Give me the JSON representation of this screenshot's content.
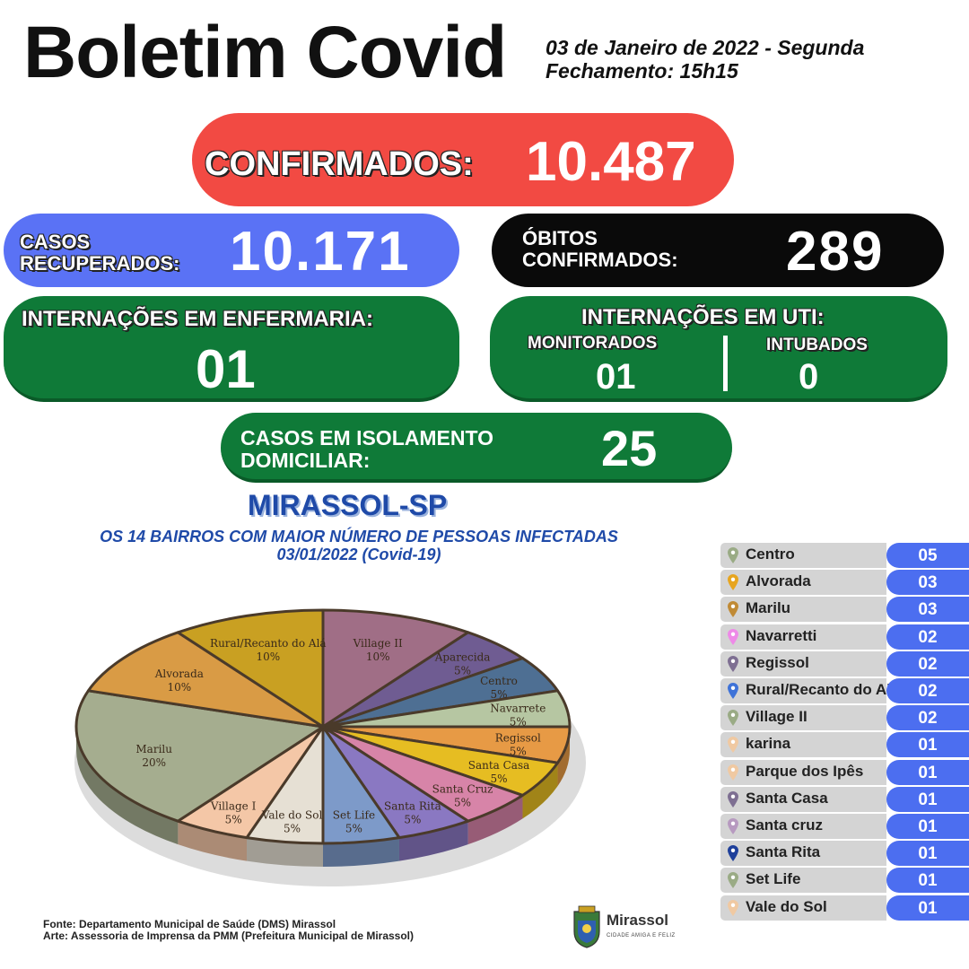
{
  "header": {
    "title": "Boletim Covid",
    "date": "03 de Janeiro de 2022 - Segunda",
    "closing": "Fechamento: 15h15"
  },
  "confirmed": {
    "label": "CONFIRMADOS:",
    "value": "10.487",
    "color": "#f24a43"
  },
  "recovered": {
    "label_line1": "CASOS",
    "label_line2": "RECUPERADOS:",
    "value": "10.171",
    "color": "#5a72f5"
  },
  "deaths": {
    "label_line1": "ÓBITOS",
    "label_line2": "CONFIRMADOS:",
    "value": "289",
    "color": "#0a0a0a"
  },
  "ward": {
    "label": "INTERNAÇÕES EM ENFERMARIA:",
    "value": "01"
  },
  "icu": {
    "label": "INTERNAÇÕES EM UTI:",
    "monitored_label": "MONITORADOS",
    "monitored_value": "01",
    "intubated_label": "INTUBADOS",
    "intubated_value": "0"
  },
  "isolation": {
    "label_line1": "CASOS EM ISOLAMENTO",
    "label_line2": "DOMICILIAR:",
    "value": "25"
  },
  "city": "MIRASSOL-SP",
  "chart_title_line1": "OS 14 BAIRROS COM MAIOR NÚMERO DE PESSOAS INFECTADAS",
  "chart_title_line2": "03/01/2022 (Covid-19)",
  "chart_data": {
    "type": "pie",
    "title": "OS 14 BAIRROS COM MAIOR NÚMERO DE PESSOAS INFECTADAS 03/01/2022 (Covid-19)",
    "slices": [
      {
        "label": "Village II",
        "value": 10,
        "display": "10%",
        "color": "#a06e86"
      },
      {
        "label": "Aparecida",
        "value": 5,
        "display": "5%",
        "color": "#6f5c92"
      },
      {
        "label": "Centro",
        "value": 5,
        "display": "5%",
        "color": "#4e6f93"
      },
      {
        "label": "Navarrete",
        "value": 5,
        "display": "5%",
        "color": "#b6c6a2"
      },
      {
        "label": "Regissol",
        "value": 5,
        "display": "5%",
        "color": "#e79a45"
      },
      {
        "label": "Santa Casa",
        "value": 5,
        "display": "5%",
        "color": "#e6bd22"
      },
      {
        "label": "Santa Cruz",
        "value": 5,
        "display": "5%",
        "color": "#d784a8"
      },
      {
        "label": "Santa Rita",
        "value": 5,
        "display": "5%",
        "color": "#8a78c2"
      },
      {
        "label": "Set Life",
        "value": 5,
        "display": "5%",
        "color": "#7d9ac9"
      },
      {
        "label": "Vale do Sol",
        "value": 5,
        "display": "5%",
        "color": "#e6e0d4"
      },
      {
        "label": "Village I",
        "value": 5,
        "display": "5%",
        "color": "#f4c7a7"
      },
      {
        "label": "Marilu",
        "value": 20,
        "display": "20%",
        "color": "#a5ad8f"
      },
      {
        "label": "Alvorada",
        "value": 10,
        "display": "10%",
        "color": "#d99b45"
      },
      {
        "label": "Rural/Recanto do Alá",
        "value": 10,
        "display": "10%",
        "color": "#c9a022"
      }
    ]
  },
  "table": [
    {
      "name": "Centro",
      "value": "05",
      "pin_color": "#9aab85"
    },
    {
      "name": "Alvorada",
      "value": "03",
      "pin_color": "#e7a51f"
    },
    {
      "name": "Marilu",
      "value": "03",
      "pin_color": "#c08a35"
    },
    {
      "name": "Navarretti",
      "value": "02",
      "pin_color": "#ee8ae8"
    },
    {
      "name": "Regissol",
      "value": "02",
      "pin_color": "#7e6f92"
    },
    {
      "name": "Rural/Recanto do Alá",
      "value": "02",
      "pin_color": "#3f73d8"
    },
    {
      "name": "Village II",
      "value": "02",
      "pin_color": "#9aab85"
    },
    {
      "name": "karina",
      "value": "01",
      "pin_color": "#f0c9a2"
    },
    {
      "name": "Parque dos Ipês",
      "value": "01",
      "pin_color": "#f0c9a2"
    },
    {
      "name": "Santa Casa",
      "value": "01",
      "pin_color": "#7e6f92"
    },
    {
      "name": "Santa cruz",
      "value": "01",
      "pin_color": "#b79ac0"
    },
    {
      "name": "Santa Rita",
      "value": "01",
      "pin_color": "#1e3f9a"
    },
    {
      "name": "Set Life",
      "value": "01",
      "pin_color": "#9aab85"
    },
    {
      "name": "Vale do Sol",
      "value": "01",
      "pin_color": "#f0c9a2"
    }
  ],
  "footer": {
    "line1": "Fonte: Departamento Municipal de Saúde (DMS) Mirassol",
    "line2": "Arte: Assessoria de Imprensa da PMM (Prefeitura Municipal de Mirassol)"
  },
  "logo": {
    "name": "Mirassol",
    "tagline": "CIDADE AMIGA E FELIZ"
  }
}
